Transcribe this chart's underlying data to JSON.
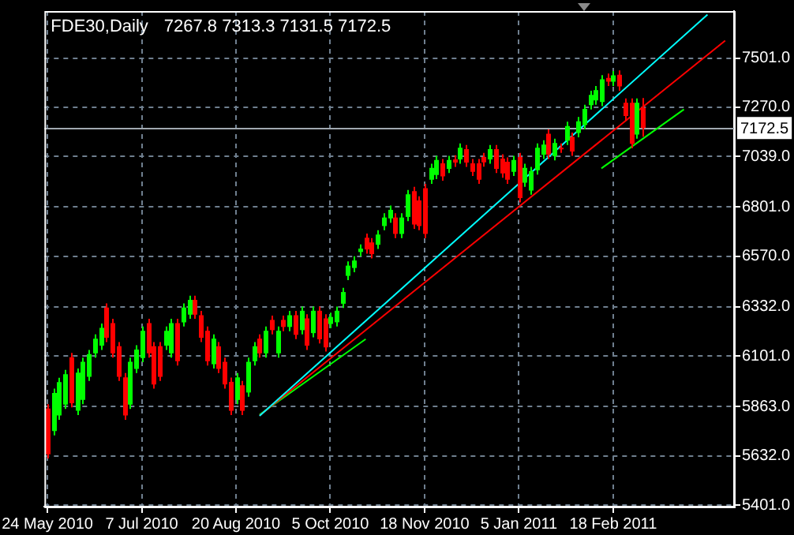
{
  "chart_data": {
    "type": "candlestick",
    "title": "FDE30,Daily",
    "subtitle": "7267.8 7313.3 7131.5 7172.5",
    "categories": [
      "24 May 2010",
      null,
      null,
      null,
      null,
      null,
      null,
      null,
      null,
      null,
      null,
      null,
      null,
      null,
      null,
      null,
      "7 Jul 2010",
      null,
      null,
      null,
      null,
      null,
      null,
      null,
      null,
      null,
      null,
      null,
      null,
      null,
      null,
      null,
      "20 Aug 2010",
      null,
      null,
      null,
      null,
      null,
      null,
      null,
      null,
      null,
      null,
      null,
      null,
      null,
      null,
      null,
      "5 Oct 2010",
      null,
      null,
      null,
      null,
      null,
      null,
      null,
      null,
      null,
      null,
      null,
      null,
      null,
      null,
      null,
      "18 Nov 2010",
      null,
      null,
      null,
      null,
      null,
      null,
      null,
      null,
      null,
      null,
      null,
      null,
      null,
      null,
      null,
      "5 Jan 2011",
      null,
      null,
      null,
      null,
      null,
      null,
      null,
      null,
      null,
      null,
      null,
      null,
      null,
      null,
      null,
      "18 Feb 2011",
      null,
      null,
      null,
      null,
      null,
      null,
      null,
      null,
      null,
      null,
      null,
      null,
      null,
      null,
      null,
      null,
      null,
      null,
      null,
      null
    ],
    "ohlc": [
      [
        5855,
        5875,
        5620,
        5640
      ],
      [
        5749,
        5948,
        5729,
        5928
      ],
      [
        5822,
        5999,
        5802,
        5979
      ],
      [
        5873,
        6036,
        5853,
        6016
      ],
      [
        6096,
        6116,
        5860,
        5880
      ],
      [
        5844,
        6043,
        5824,
        6023
      ],
      [
        5895,
        6094,
        5875,
        6074
      ],
      [
        6004,
        6130,
        5984,
        6110
      ],
      [
        6114,
        6203,
        6094,
        6183
      ],
      [
        6150,
        6254,
        6130,
        6234
      ],
      [
        6329,
        6349,
        6167,
        6187
      ],
      [
        6256,
        6276,
        6094,
        6114
      ],
      [
        6147,
        6167,
        5984,
        6004
      ],
      [
        6001,
        6021,
        5802,
        5822
      ],
      [
        5873,
        6094,
        5853,
        6074
      ],
      [
        6041,
        6152,
        6021,
        6132
      ],
      [
        6092,
        6240,
        6072,
        6220
      ],
      [
        6256,
        6276,
        6094,
        6114
      ],
      [
        6147,
        6167,
        5948,
        5968
      ],
      [
        6147,
        6167,
        5984,
        6004
      ],
      [
        6150,
        6240,
        6130,
        6220
      ],
      [
        6114,
        6276,
        6094,
        6256
      ],
      [
        6256,
        6276,
        6057,
        6077
      ],
      [
        6260,
        6349,
        6240,
        6329
      ],
      [
        6296,
        6385,
        6276,
        6365
      ],
      [
        6365,
        6385,
        6276,
        6296
      ],
      [
        6293,
        6313,
        6167,
        6187
      ],
      [
        6220,
        6240,
        6057,
        6077
      ],
      [
        6063,
        6203,
        6043,
        6183
      ],
      [
        6147,
        6167,
        6021,
        6041
      ],
      [
        6074,
        6094,
        5948,
        5968
      ],
      [
        5980,
        6000,
        5824,
        5844
      ],
      [
        5895,
        6021,
        5875,
        6001
      ],
      [
        5964,
        5984,
        5824,
        5844
      ],
      [
        5930,
        6094,
        5910,
        6074
      ],
      [
        6077,
        6167,
        6057,
        6147
      ],
      [
        6183,
        6203,
        6094,
        6114
      ],
      [
        6114,
        6240,
        6094,
        6220
      ],
      [
        6271,
        6291,
        6203,
        6223
      ],
      [
        6114,
        6240,
        6094,
        6220
      ],
      [
        6271,
        6291,
        6218,
        6238
      ],
      [
        6238,
        6313,
        6218,
        6293
      ],
      [
        6293,
        6313,
        6181,
        6201
      ],
      [
        6223,
        6334,
        6203,
        6314
      ],
      [
        6278,
        6298,
        6130,
        6150
      ],
      [
        6209,
        6334,
        6189,
        6314
      ],
      [
        6314,
        6334,
        6160,
        6180
      ],
      [
        6278,
        6298,
        6122,
        6142
      ],
      [
        6252,
        6305,
        6232,
        6285
      ],
      [
        6260,
        6334,
        6240,
        6314
      ],
      [
        6347,
        6422,
        6327,
        6402
      ],
      [
        6478,
        6546,
        6458,
        6526
      ],
      [
        6515,
        6570,
        6495,
        6550
      ],
      [
        6590,
        6626,
        6570,
        6606
      ],
      [
        6657,
        6677,
        6582,
        6602
      ],
      [
        6635,
        6655,
        6560,
        6580
      ],
      [
        6624,
        6692,
        6604,
        6672
      ],
      [
        6712,
        6772,
        6692,
        6752
      ],
      [
        6748,
        6808,
        6728,
        6788
      ],
      [
        6752,
        6772,
        6655,
        6675
      ],
      [
        6675,
        6772,
        6655,
        6752
      ],
      [
        6755,
        6881,
        6735,
        6861
      ],
      [
        6876,
        6896,
        6699,
        6719
      ],
      [
        6832,
        6852,
        6692,
        6712
      ],
      [
        6890,
        6910,
        6655,
        6675
      ],
      [
        6930,
        7005,
        6910,
        6985
      ],
      [
        6952,
        7042,
        6932,
        7022
      ],
      [
        7007,
        7027,
        6925,
        6945
      ],
      [
        6981,
        7042,
        6961,
        7022
      ],
      [
        7025,
        7045,
        6990,
        7010
      ],
      [
        7025,
        7100,
        7005,
        7080
      ],
      [
        7073,
        7093,
        6990,
        7010
      ],
      [
        7007,
        7027,
        6947,
        6967
      ],
      [
        7007,
        7027,
        6910,
        6930
      ],
      [
        7036,
        7056,
        6991,
        7011
      ],
      [
        7025,
        7093,
        7005,
        7073
      ],
      [
        7073,
        7093,
        6961,
        6981
      ],
      [
        7029,
        7049,
        6939,
        6959
      ],
      [
        7014,
        7034,
        6910,
        6930
      ],
      [
        6967,
        7042,
        6947,
        7022
      ],
      [
        7036,
        7056,
        6823,
        6843
      ],
      [
        6916,
        7005,
        6896,
        6985
      ],
      [
        6879,
        6990,
        6859,
        6970
      ],
      [
        6974,
        7100,
        6954,
        7080
      ],
      [
        7047,
        7115,
        7027,
        7095
      ],
      [
        7146,
        7166,
        7027,
        7047
      ],
      [
        7040,
        7122,
        7020,
        7102
      ],
      [
        7080,
        7100,
        7056,
        7076
      ],
      [
        7113,
        7202,
        7093,
        7182
      ],
      [
        7131,
        7151,
        7042,
        7062
      ],
      [
        7149,
        7224,
        7129,
        7204
      ],
      [
        7186,
        7282,
        7166,
        7262
      ],
      [
        7280,
        7348,
        7260,
        7328
      ],
      [
        7302,
        7370,
        7282,
        7350
      ],
      [
        7295,
        7421,
        7275,
        7401
      ],
      [
        7408,
        7428,
        7370,
        7390
      ],
      [
        7390,
        7440,
        7370,
        7420
      ],
      [
        7423,
        7443,
        7348,
        7368
      ],
      [
        7291,
        7311,
        7209,
        7229
      ],
      [
        7291,
        7311,
        7078,
        7098
      ],
      [
        7142,
        7311,
        7122,
        7291
      ],
      [
        7267.8,
        7313.3,
        7131.5,
        7172.5
      ],
      null,
      null,
      null,
      null,
      null,
      null,
      null,
      null,
      null,
      null,
      null,
      null,
      null,
      null,
      null
    ],
    "colors": [
      "#ff0000",
      "#00ff00",
      "#00ff00",
      "#00ff00",
      "#ff0000",
      "#00ff00",
      "#00ff00",
      "#00ff00",
      "#00ff00",
      "#00ff00",
      "#ff0000",
      "#ff0000",
      "#ff0000",
      "#ff0000",
      "#00ff00",
      "#00ff00",
      "#00ff00",
      "#ff0000",
      "#ff0000",
      "#ff0000",
      "#00ff00",
      "#00ff00",
      "#ff0000",
      "#00ff00",
      "#00ff00",
      "#ff0000",
      "#ff0000",
      "#ff0000",
      "#00ff00",
      "#ff0000",
      "#ff0000",
      "#ff0000",
      "#00ff00",
      "#ff0000",
      "#00ff00",
      "#00ff00",
      "#ff0000",
      "#00ff00",
      "#ff0000",
      "#00ff00",
      "#ff0000",
      "#00ff00",
      "#ff0000",
      "#00ff00",
      "#ff0000",
      "#00ff00",
      "#ff0000",
      "#ff0000",
      "#00ff00",
      "#00ff00",
      "#00ff00",
      "#00ff00",
      "#00ff00",
      "#00ff00",
      "#ff0000",
      "#ff0000",
      "#00ff00",
      "#00ff00",
      "#00ff00",
      "#ff0000",
      "#00ff00",
      "#00ff00",
      "#ff0000",
      "#ff0000",
      "#ff0000",
      "#00ff00",
      "#00ff00",
      "#ff0000",
      "#00ff00",
      "#ff0000",
      "#00ff00",
      "#ff0000",
      "#ff0000",
      "#ff0000",
      "#ff0000",
      "#00ff00",
      "#ff0000",
      "#ff0000",
      "#ff0000",
      "#00ff00",
      "#ff0000",
      "#00ff00",
      "#00ff00",
      "#00ff00",
      "#00ff00",
      "#ff0000",
      "#00ff00",
      "#ff0000",
      "#00ff00",
      "#ff0000",
      "#00ff00",
      "#00ff00",
      "#00ff00",
      "#00ff00",
      "#00ff00",
      "#ff0000",
      "#00ff00",
      "#ff0000",
      "#ff0000",
      "#ff0000",
      "#00ff00",
      "#ff0000",
      null,
      null,
      null,
      null,
      null,
      null,
      null,
      null,
      null,
      null,
      null,
      null,
      null,
      null,
      null
    ],
    "series": [
      {
        "type": "line",
        "color": "#00ffff",
        "values": [
          null,
          null,
          null,
          null,
          null,
          null,
          null,
          null,
          null,
          null,
          null,
          null,
          null,
          null,
          null,
          null,
          null,
          null,
          null,
          null,
          null,
          null,
          null,
          null,
          null,
          null,
          null,
          null,
          null,
          null,
          null,
          null,
          null,
          null,
          null,
          null,
          5820,
          null,
          null,
          null,
          null,
          null,
          null,
          null,
          null,
          null,
          null,
          null,
          null,
          null,
          null,
          null,
          null,
          null,
          null,
          null,
          null,
          null,
          null,
          null,
          null,
          null,
          null,
          null,
          null,
          null,
          null,
          null,
          null,
          null,
          null,
          null,
          null,
          null,
          null,
          null,
          null,
          null,
          null,
          null,
          null,
          null,
          null,
          null,
          null,
          null,
          null,
          null,
          null,
          null,
          null,
          null,
          null,
          null,
          null,
          null,
          null,
          null,
          null,
          null,
          null,
          null,
          null,
          null,
          null,
          null,
          null,
          null,
          null,
          null,
          null,
          null,
          7705,
          null,
          null,
          null,
          null
        ]
      },
      {
        "type": "line",
        "color": "#ff0000",
        "values": [
          null,
          null,
          null,
          null,
          null,
          null,
          null,
          null,
          null,
          null,
          null,
          null,
          null,
          null,
          null,
          null,
          null,
          null,
          null,
          null,
          null,
          null,
          null,
          null,
          null,
          null,
          null,
          null,
          null,
          null,
          null,
          null,
          null,
          null,
          null,
          null,
          5822,
          null,
          null,
          null,
          null,
          null,
          null,
          null,
          null,
          null,
          null,
          null,
          null,
          null,
          null,
          null,
          null,
          null,
          null,
          null,
          null,
          null,
          null,
          null,
          null,
          null,
          null,
          null,
          null,
          null,
          null,
          null,
          null,
          null,
          null,
          null,
          null,
          null,
          null,
          null,
          null,
          null,
          null,
          null,
          null,
          null,
          null,
          null,
          null,
          null,
          null,
          null,
          null,
          null,
          null,
          null,
          null,
          null,
          null,
          null,
          null,
          null,
          null,
          null,
          null,
          null,
          null,
          null,
          null,
          null,
          null,
          null,
          null,
          null,
          null,
          null,
          null,
          null,
          null,
          7583,
          null
        ]
      },
      {
        "type": "line",
        "color": "#00ff00",
        "values": [
          null,
          null,
          null,
          null,
          null,
          null,
          null,
          null,
          null,
          null,
          null,
          null,
          null,
          null,
          null,
          null,
          null,
          null,
          null,
          null,
          null,
          null,
          null,
          null,
          null,
          null,
          null,
          null,
          null,
          null,
          null,
          null,
          null,
          null,
          null,
          null,
          5826,
          null,
          null,
          null,
          null,
          null,
          null,
          null,
          null,
          null,
          null,
          null,
          null,
          null,
          null,
          null,
          null,
          null,
          6181,
          null,
          null,
          null,
          null,
          null,
          null,
          null,
          null,
          null,
          null,
          null,
          null,
          null,
          null,
          null,
          null,
          null,
          null,
          null,
          null,
          null,
          null,
          null,
          null,
          null,
          null,
          null,
          null,
          null,
          null,
          null,
          null,
          null,
          null,
          null,
          null,
          null,
          null,
          null,
          null,
          null,
          null,
          null,
          null,
          null,
          null,
          null,
          null,
          null,
          null,
          null,
          null,
          null,
          null,
          null,
          null,
          null,
          null,
          null,
          null,
          null,
          null
        ]
      },
      {
        "type": "line",
        "color": "#00ff00",
        "values": [
          null,
          null,
          null,
          null,
          null,
          null,
          null,
          null,
          null,
          null,
          null,
          null,
          null,
          null,
          null,
          null,
          null,
          null,
          null,
          null,
          null,
          null,
          null,
          null,
          null,
          null,
          null,
          null,
          null,
          null,
          null,
          null,
          null,
          null,
          null,
          null,
          null,
          null,
          null,
          null,
          null,
          null,
          null,
          null,
          null,
          null,
          null,
          null,
          null,
          null,
          null,
          null,
          null,
          null,
          null,
          null,
          null,
          null,
          null,
          null,
          null,
          null,
          null,
          null,
          null,
          null,
          null,
          null,
          null,
          null,
          null,
          null,
          null,
          null,
          null,
          null,
          null,
          null,
          null,
          null,
          null,
          null,
          null,
          null,
          null,
          null,
          null,
          null,
          null,
          null,
          null,
          null,
          null,
          null,
          6983,
          null,
          null,
          null,
          null,
          null,
          null,
          null,
          null,
          null,
          null,
          null,
          null,
          null,
          7260,
          null,
          null,
          null,
          null,
          null,
          null,
          null,
          null
        ]
      }
    ],
    "ylim": [
      5394,
      7722
    ],
    "yticks": [
      {
        "value": 5401,
        "label": "5401.0"
      },
      {
        "value": 5632,
        "label": "5632.0"
      },
      {
        "value": 5863,
        "label": "5863.0"
      },
      {
        "value": 6101,
        "label": "6101.0"
      },
      {
        "value": 6332,
        "label": "6332.0"
      },
      {
        "value": 6570,
        "label": "6570.0"
      },
      {
        "value": 6801,
        "label": "6801.0"
      },
      {
        "value": 7039,
        "label": "7039.0"
      },
      {
        "value": 7270,
        "label": "7270.0"
      },
      {
        "value": 7501,
        "label": "7501.0"
      }
    ],
    "ref_lines": [
      {
        "axis": "y",
        "value": 7172.5,
        "label": "7172.5",
        "color": "#a0a8b0"
      }
    ],
    "grid": true
  }
}
